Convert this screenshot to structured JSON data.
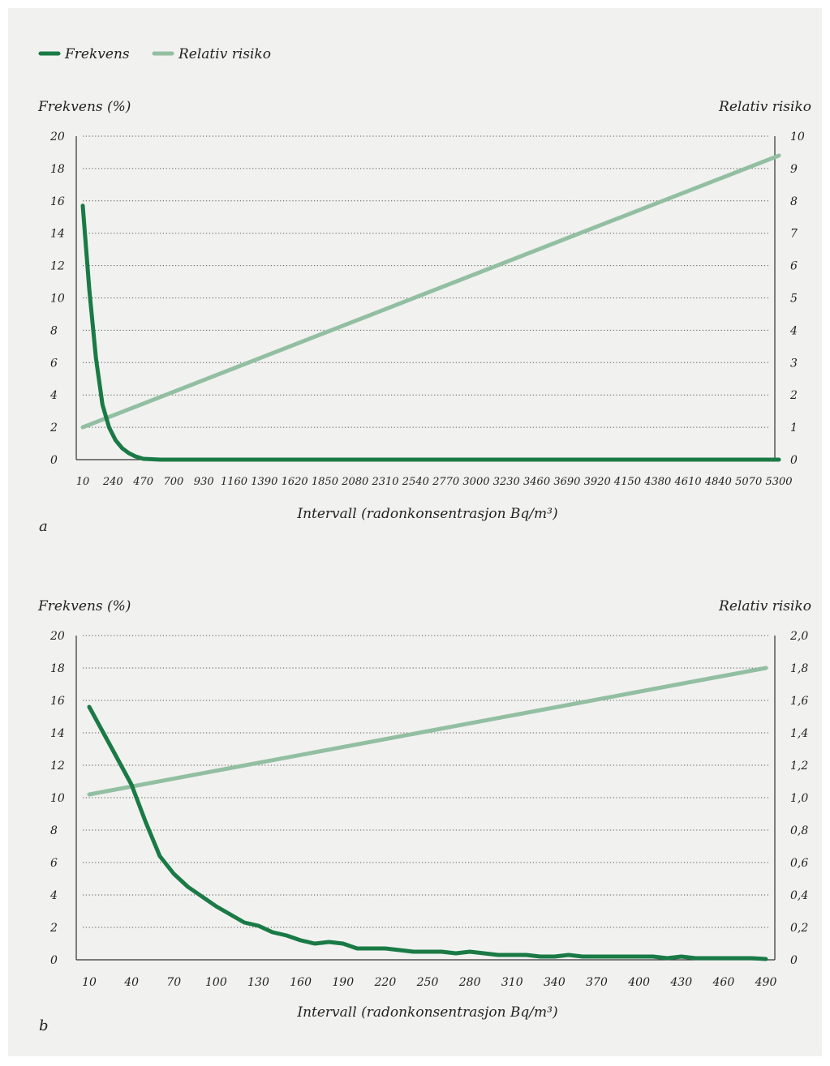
{
  "legend": [
    {
      "label": "Frekvens",
      "color": "#1a7a45"
    },
    {
      "label": "Relativ risiko",
      "color": "#92bfa1"
    }
  ],
  "chart_data": [
    {
      "panel_label": "a",
      "type": "line",
      "y_left_label": "Frekvens (%)",
      "y_right_label": "Relativ risiko",
      "xlabel": "Intervall (radonkonsentrasjon Bq/m³)",
      "x_ticks": [
        "10",
        "240",
        "470",
        "700",
        "930",
        "1160",
        "1390",
        "1620",
        "1850",
        "2080",
        "2310",
        "2540",
        "2770",
        "3000",
        "3230",
        "3460",
        "3690",
        "3920",
        "4150",
        "4380",
        "4610",
        "4840",
        "5070",
        "5300"
      ],
      "y_left_ticks": [
        "0",
        "2",
        "4",
        "6",
        "8",
        "10",
        "12",
        "14",
        "16",
        "18",
        "20"
      ],
      "y_right_ticks": [
        "0",
        "1",
        "2",
        "3",
        "4",
        "5",
        "6",
        "7",
        "8",
        "9",
        "10"
      ],
      "xlim": [
        10,
        5300
      ],
      "ylim_left": [
        0,
        20
      ],
      "ylim_right": [
        0,
        10
      ],
      "grid": true,
      "series": [
        {
          "name": "Frekvens",
          "axis": "left",
          "color": "#1a7a45",
          "x": [
            10,
            60,
            110,
            160,
            210,
            260,
            310,
            360,
            410,
            470,
            600,
            1000,
            2000,
            3000,
            4000,
            5300
          ],
          "y": [
            15.7,
            10.5,
            6.3,
            3.4,
            2.0,
            1.2,
            0.7,
            0.4,
            0.2,
            0.05,
            0.0,
            0.0,
            0.0,
            0.0,
            0.0,
            0.0
          ]
        },
        {
          "name": "Relativ risiko",
          "axis": "right",
          "color": "#92bfa1",
          "x": [
            10,
            5300
          ],
          "y": [
            1.0,
            9.4
          ]
        }
      ]
    },
    {
      "panel_label": "b",
      "type": "line",
      "y_left_label": "Frekvens (%)",
      "y_right_label": "Relativ risiko",
      "xlabel": "Intervall (radonkonsentrasjon Bq/m³)",
      "x_ticks": [
        "10",
        "40",
        "70",
        "100",
        "130",
        "160",
        "190",
        "220",
        "250",
        "280",
        "310",
        "340",
        "370",
        "400",
        "430",
        "460",
        "490"
      ],
      "y_left_ticks": [
        "0",
        "2",
        "4",
        "6",
        "8",
        "10",
        "12",
        "14",
        "16",
        "18",
        "20"
      ],
      "y_right_ticks": [
        "0",
        "0,2",
        "0,4",
        "0,6",
        "0,8",
        "1,0",
        "1,2",
        "1,4",
        "1,6",
        "1,8",
        "2,0"
      ],
      "xlim": [
        10,
        490
      ],
      "ylim_left": [
        0,
        20
      ],
      "ylim_right": [
        0,
        2.0
      ],
      "grid": true,
      "series": [
        {
          "name": "Frekvens",
          "axis": "left",
          "color": "#1a7a45",
          "x": [
            10,
            20,
            30,
            40,
            50,
            60,
            70,
            80,
            90,
            100,
            110,
            120,
            130,
            140,
            150,
            160,
            170,
            180,
            190,
            200,
            210,
            220,
            230,
            240,
            250,
            260,
            270,
            280,
            290,
            300,
            310,
            320,
            330,
            340,
            350,
            360,
            370,
            380,
            390,
            400,
            410,
            420,
            430,
            440,
            450,
            460,
            470,
            480,
            490
          ],
          "y": [
            15.6,
            14.0,
            12.4,
            10.8,
            8.5,
            6.4,
            5.3,
            4.5,
            3.9,
            3.3,
            2.8,
            2.3,
            2.1,
            1.7,
            1.5,
            1.2,
            1.0,
            1.1,
            1.0,
            0.7,
            0.7,
            0.7,
            0.6,
            0.5,
            0.5,
            0.5,
            0.4,
            0.5,
            0.4,
            0.3,
            0.3,
            0.3,
            0.2,
            0.2,
            0.3,
            0.2,
            0.2,
            0.2,
            0.2,
            0.2,
            0.2,
            0.1,
            0.2,
            0.1,
            0.1,
            0.1,
            0.1,
            0.1,
            0.05
          ]
        },
        {
          "name": "Relativ risiko",
          "axis": "right",
          "color": "#92bfa1",
          "x": [
            10,
            490
          ],
          "y": [
            1.02,
            1.8
          ]
        }
      ]
    }
  ]
}
